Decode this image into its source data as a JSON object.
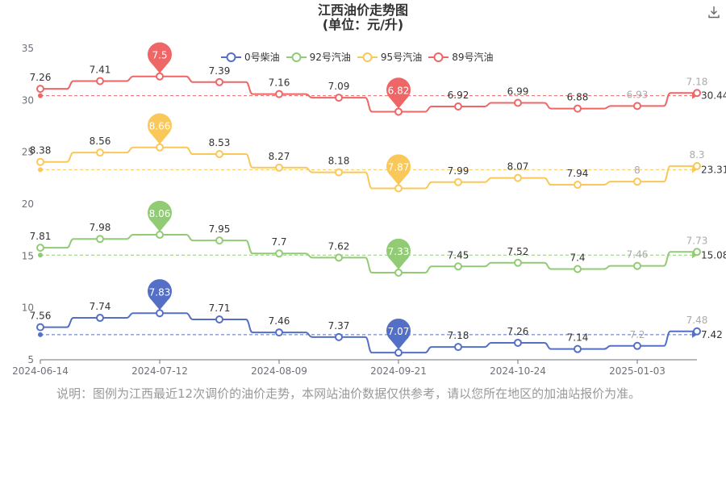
{
  "title": {
    "line1": "江西油价走势图",
    "line2": "(单位：元/升)"
  },
  "download_icon": "download-icon",
  "note": "说明：图例为江西最近12次调价的油价走势，本网站油价数据仅供参考，请以您所在地区的加油站报价为准。",
  "chart_data": {
    "type": "line",
    "title": "江西油价走势图",
    "subtitle": "(单位：元/升)",
    "x_labels": [
      "2024-06-14",
      "2024-07-12",
      "2024-08-09",
      "2024-09-21",
      "2024-10-24",
      "2025-01-03"
    ],
    "ylim": [
      5,
      35
    ],
    "yticks": [
      5,
      10,
      15,
      20,
      25,
      30,
      35
    ],
    "legend_position": "top-center",
    "grid": false,
    "series": [
      {
        "name": "0号柴油",
        "color": "#5470c6",
        "values": [
          7.56,
          7.74,
          7.83,
          7.71,
          7.46,
          7.37,
          7.07,
          7.18,
          7.26,
          7.14,
          7.2,
          7.48
        ],
        "max_label": "7.83",
        "min_label": "7.07",
        "average": 7.42,
        "average_label": "7.42"
      },
      {
        "name": "92号汽油",
        "color": "#91cc75",
        "values": [
          7.81,
          7.98,
          8.06,
          7.95,
          7.7,
          7.62,
          7.33,
          7.45,
          7.52,
          7.4,
          7.46,
          7.73
        ],
        "max_label": "8.06",
        "min_label": "7.33",
        "average": 15.08,
        "average_label": "15.08"
      },
      {
        "name": "95号汽油",
        "color": "#fac858",
        "values": [
          8.38,
          8.56,
          8.66,
          8.53,
          8.27,
          8.18,
          7.87,
          7.99,
          8.07,
          7.94,
          8,
          8.3
        ],
        "max_label": "8.66",
        "min_label": "7.87",
        "average": 23.31,
        "average_label": "23.31"
      },
      {
        "name": "89号汽油",
        "color": "#ee6666",
        "values": [
          7.26,
          7.41,
          7.5,
          7.39,
          7.16,
          7.09,
          6.82,
          6.92,
          6.99,
          6.88,
          6.93,
          7.18
        ],
        "max_label": "7.5",
        "min_label": "6.82",
        "average": 30.44,
        "average_label": "30.44"
      }
    ]
  }
}
